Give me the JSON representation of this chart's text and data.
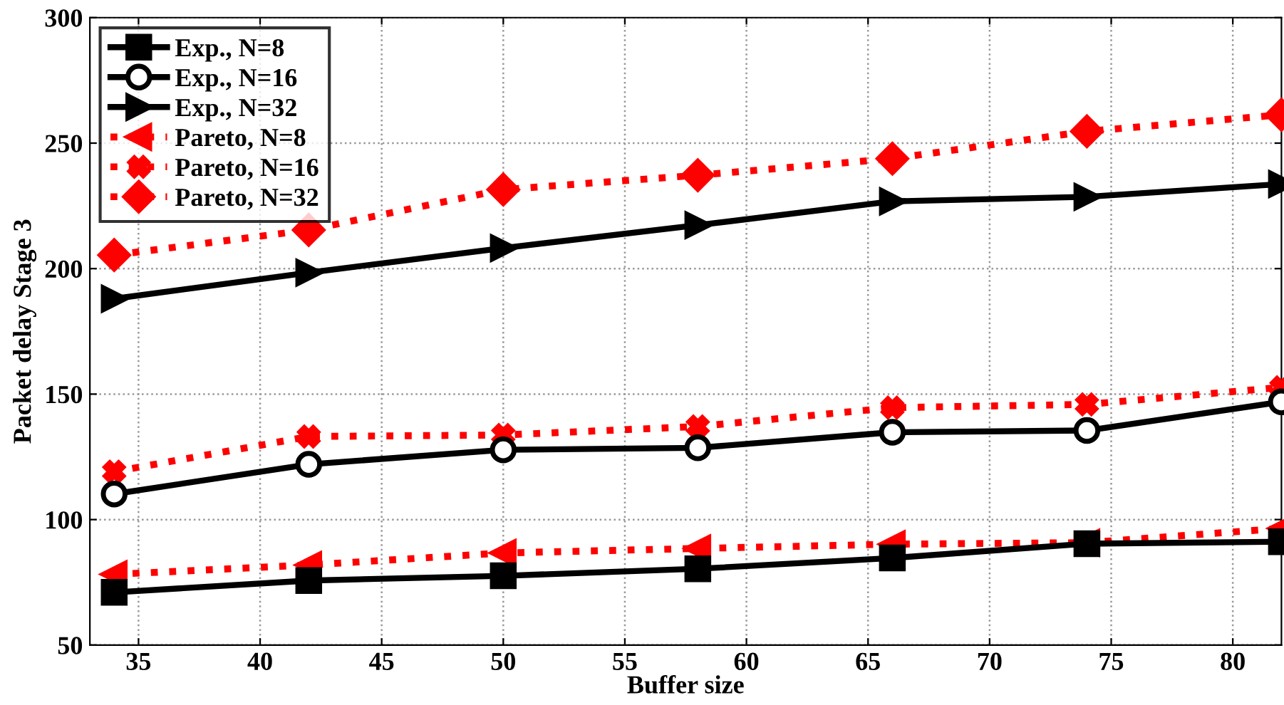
{
  "chart_data": {
    "type": "line",
    "xlabel": "Buffer size",
    "ylabel": "Packet delay Stage 3",
    "x": [
      34,
      42,
      50,
      58,
      66,
      74,
      82
    ],
    "series": [
      {
        "name": "Exp., N=8",
        "color": "#000000",
        "marker": "square",
        "line_style": "solid",
        "values": [
          71,
          75.7,
          77.6,
          80.4,
          84.7,
          90.4,
          91.2
        ]
      },
      {
        "name": "Exp., N=16",
        "color": "#000000",
        "marker": "circle",
        "line_style": "solid",
        "values": [
          110.2,
          122,
          127.8,
          128.6,
          134.8,
          135.5,
          146.9
        ]
      },
      {
        "name": "Exp., N=32",
        "color": "#000000",
        "marker": "triangle-right",
        "line_style": "solid",
        "values": [
          188,
          198.4,
          208.2,
          217.3,
          226.8,
          228.6,
          233.7
        ]
      },
      {
        "name": "Pareto, N=8",
        "color": "#ff0000",
        "marker": "triangle-left",
        "line_style": "dotted",
        "values": [
          78.2,
          81.9,
          86.7,
          88.5,
          90.2,
          90.8,
          96.5
        ]
      },
      {
        "name": "Pareto, N=16",
        "color": "#ff0000",
        "marker": "cross",
        "line_style": "dotted",
        "values": [
          119.1,
          133.1,
          133.7,
          137.1,
          144.6,
          145.9,
          152.7
        ]
      },
      {
        "name": "Pareto, N=32",
        "color": "#ff0000",
        "marker": "diamond",
        "line_style": "dotted",
        "values": [
          205.4,
          215.4,
          231.5,
          237.2,
          243.8,
          254.7,
          261.3
        ]
      }
    ],
    "xlim": [
      33,
      82
    ],
    "xticks": [
      35,
      40,
      45,
      50,
      55,
      60,
      65,
      70,
      75,
      80
    ],
    "ylim": [
      50,
      300
    ],
    "yticks": [
      50,
      100,
      150,
      200,
      250,
      300
    ],
    "grid": true,
    "legend": "top left"
  }
}
